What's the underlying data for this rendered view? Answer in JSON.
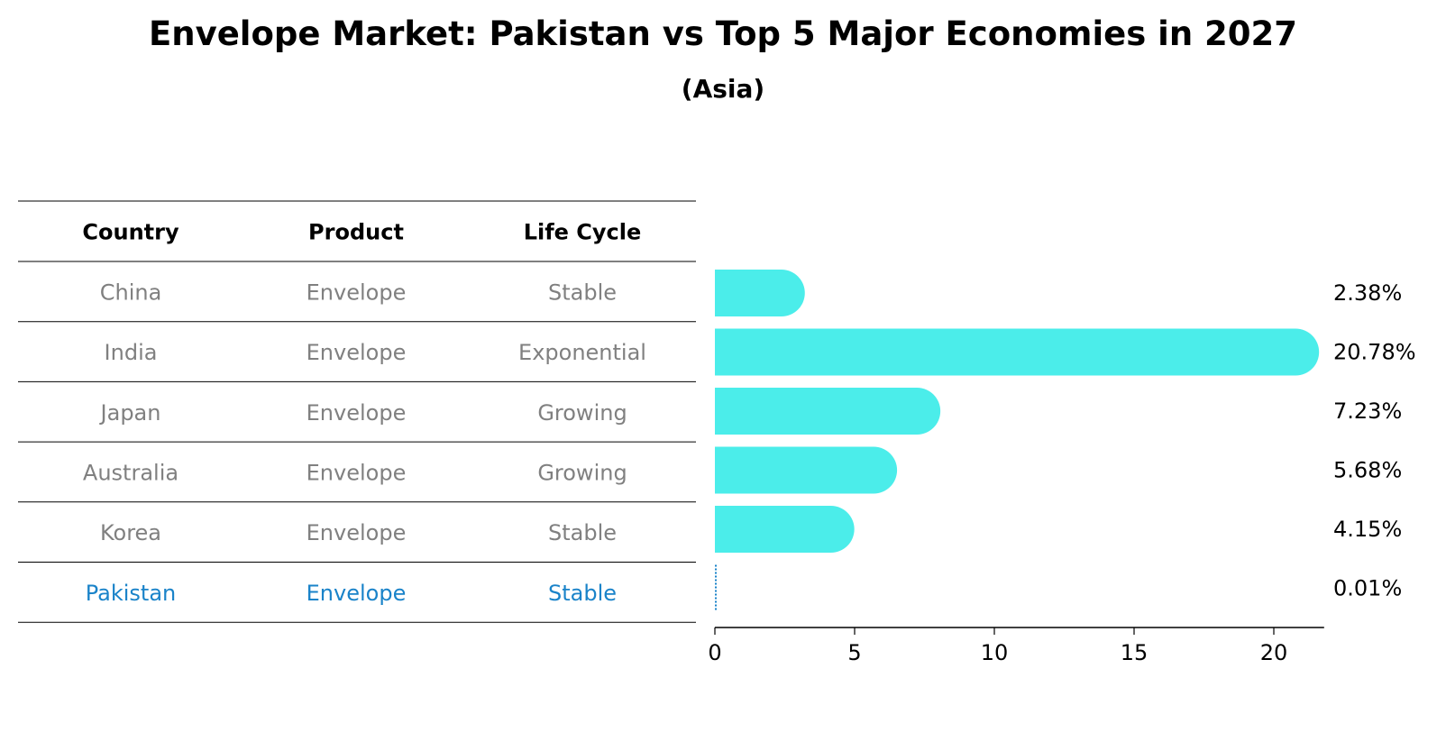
{
  "title": "Envelope Market: Pakistan vs Top 5 Major Economies in 2027",
  "subtitle": "(Asia)",
  "colors": {
    "bar": "#4bedea",
    "highlight": "#1a83c9",
    "muted": "#808080",
    "header": "#000000"
  },
  "table": {
    "headers": [
      "Country",
      "Product",
      "Life Cycle"
    ],
    "rows": [
      {
        "country": "China",
        "product": "Envelope",
        "life_cycle": "Stable",
        "highlight": false
      },
      {
        "country": "India",
        "product": "Envelope",
        "life_cycle": "Exponential",
        "highlight": false
      },
      {
        "country": "Japan",
        "product": "Envelope",
        "life_cycle": "Growing",
        "highlight": false
      },
      {
        "country": "Australia",
        "product": "Envelope",
        "life_cycle": "Growing",
        "highlight": false
      },
      {
        "country": "Korea",
        "product": "Envelope",
        "life_cycle": "Stable",
        "highlight": false
      },
      {
        "country": "Pakistan",
        "product": "Envelope",
        "life_cycle": "Stable",
        "highlight": true
      }
    ]
  },
  "chart_data": {
    "type": "bar",
    "orientation": "horizontal",
    "title": "Envelope Market: Pakistan vs Top 5 Major Economies in 2027",
    "subtitle": "(Asia)",
    "categories": [
      "China",
      "India",
      "Japan",
      "Australia",
      "Korea",
      "Pakistan"
    ],
    "values": [
      2.38,
      20.78,
      7.23,
      5.68,
      4.15,
      0.01
    ],
    "labels": [
      "2.38%",
      "20.78%",
      "7.23%",
      "5.68%",
      "4.15%",
      "0.01%"
    ],
    "xlim": [
      0,
      21.8
    ],
    "xticks": [
      0,
      5,
      10,
      15,
      20
    ],
    "xlabel": "",
    "ylabel": ""
  }
}
